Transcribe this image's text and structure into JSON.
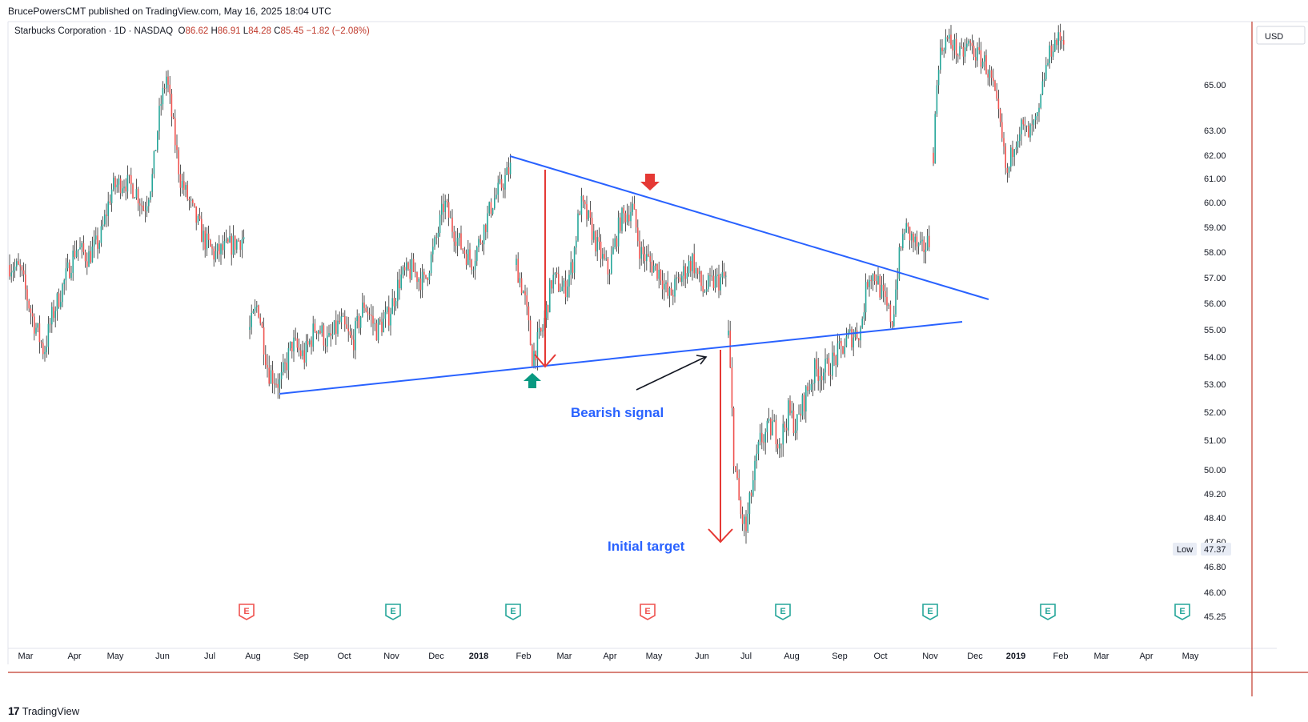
{
  "header": {
    "published": "BrucePowersCMT published on TradingView.com, May 16, 2025 18:04 UTC"
  },
  "legend": {
    "symbol": "Starbucks Corporation · 1D · NASDAQ",
    "open_label": "O",
    "open": "86.62",
    "high_label": "H",
    "high": "86.91",
    "low_label": "L",
    "low": "84.28",
    "close_label": "C",
    "close": "85.45",
    "change": "−1.82 (−2.08%)"
  },
  "footer": {
    "brand": "TradingView",
    "logo": "17"
  },
  "chart_data": {
    "type": "candlestick",
    "currency": "USD",
    "x_labels": [
      "Mar",
      "Apr",
      "May",
      "Jun",
      "Jul",
      "Aug",
      "Sep",
      "Oct",
      "Nov",
      "Dec",
      "2018",
      "Feb",
      "Mar",
      "Apr",
      "May",
      "Jun",
      "Jul",
      "Aug",
      "Sep",
      "Oct",
      "Nov",
      "Dec",
      "2019",
      "Feb",
      "Mar",
      "Apr",
      "May"
    ],
    "y_ticks": [
      "65.00",
      "63.00",
      "62.00",
      "61.00",
      "60.00",
      "59.00",
      "58.00",
      "57.00",
      "56.00",
      "55.00",
      "54.00",
      "53.00",
      "52.00",
      "51.00",
      "50.00",
      "49.20",
      "48.40",
      "47.60",
      "46.80",
      "46.00",
      "45.25"
    ],
    "low_badge": {
      "label": "Low",
      "value": "47.37"
    },
    "annotations": [
      {
        "text": "Bearish signal"
      },
      {
        "text": "Initial target"
      }
    ],
    "earnings_marker_text": "E",
    "earnings_markers": [
      {
        "month": "Jul",
        "type": "negative"
      },
      {
        "month": "Oct",
        "type": "positive"
      },
      {
        "month": "2018",
        "type": "positive"
      },
      {
        "month": "Apr",
        "type": "negative"
      },
      {
        "month": "Jul",
        "type": "positive"
      },
      {
        "month": "Oct",
        "type": "positive"
      },
      {
        "month": "2019",
        "type": "positive"
      },
      {
        "month": "Apr",
        "type": "positive"
      }
    ],
    "key_points": [
      {
        "date": "2017-08-10",
        "value": 52.6,
        "note": "triangle support start"
      },
      {
        "date": "2018-01-22",
        "value": 61.9,
        "note": "triangle resistance start"
      },
      {
        "date": "2018-06-21",
        "value": 55.0,
        "note": "gap down"
      },
      {
        "date": "2018-06-28",
        "value": 47.37,
        "note": "low"
      },
      {
        "date": "2018-10-25",
        "value": 59.5,
        "note": ""
      },
      {
        "date": "2018-11-01",
        "value": 62.0,
        "note": "gap up"
      }
    ],
    "colors": {
      "up": "#26a69a",
      "down": "#ef5350",
      "trendline": "#2962ff",
      "arrow_red": "#e53935",
      "arrow_green": "#089981"
    }
  }
}
